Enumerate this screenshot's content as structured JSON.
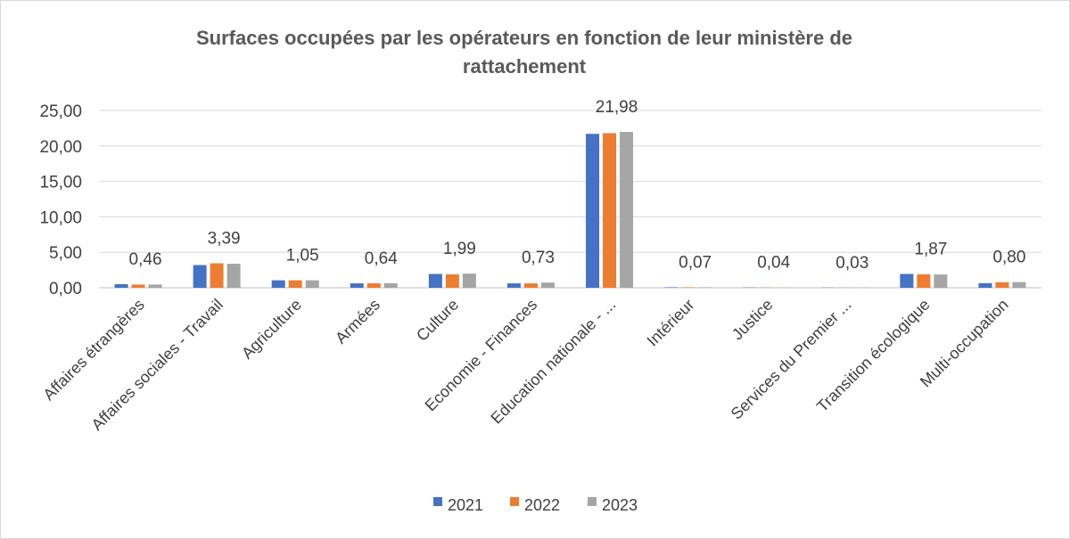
{
  "chart_data": {
    "type": "bar",
    "title_line1": "Surfaces occupées par les opérateurs en fonction de leur ministère de",
    "title_line2": "rattachement",
    "categories": [
      "Affaires étrangères",
      "Affaires sociales - Travail",
      "Agriculture",
      "Armées",
      "Culture",
      "Economie - Finances",
      "Education nationale - ...",
      "Intérieur",
      "Justice",
      "Services du Premier ...",
      "Transition écologique",
      "Multi-occupation"
    ],
    "series": [
      {
        "name": "2021",
        "color": "#4472c4",
        "values": [
          0.5,
          3.2,
          1.05,
          0.62,
          1.95,
          0.62,
          21.7,
          0.07,
          0.04,
          0.03,
          1.95,
          0.65
        ]
      },
      {
        "name": "2022",
        "color": "#ed7d31",
        "values": [
          0.45,
          3.45,
          1.05,
          0.63,
          1.9,
          0.62,
          21.8,
          0.07,
          0.04,
          0.03,
          1.9,
          0.78
        ]
      },
      {
        "name": "2023",
        "color": "#a5a5a5",
        "values": [
          0.46,
          3.39,
          1.05,
          0.64,
          1.99,
          0.73,
          21.98,
          0.07,
          0.04,
          0.03,
          1.87,
          0.8
        ]
      }
    ],
    "data_labels": [
      "0,46",
      "3,39",
      "1,05",
      "0,64",
      "1,99",
      "0,73",
      "21,98",
      "0,07",
      "0,04",
      "0,03",
      "1,87",
      "0,80"
    ],
    "y_ticks": [
      "0,00",
      "5,00",
      "10,00",
      "15,00",
      "20,00",
      "25,00"
    ],
    "ylim": [
      0,
      25
    ],
    "grid": true,
    "legend_position": "bottom"
  }
}
